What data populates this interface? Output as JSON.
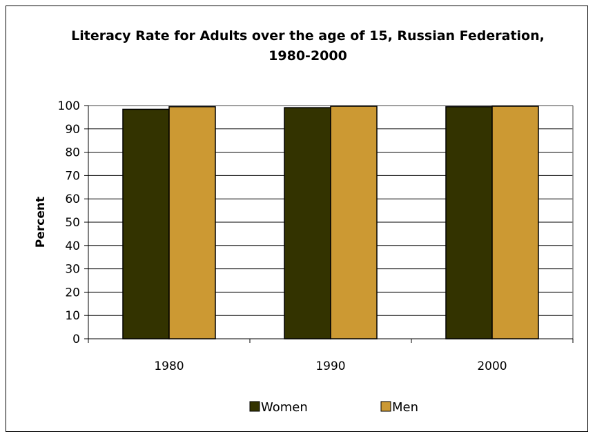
{
  "chart_data": {
    "type": "bar",
    "title_line1": "Literacy Rate for Adults over the age of 15, Russian Federation,",
    "title_line2": "1980-2000",
    "ylabel": "Percent",
    "xlabel": "",
    "ylim": [
      0,
      100
    ],
    "yticks": [
      "0",
      "10",
      "20",
      "30",
      "40",
      "50",
      "60",
      "70",
      "80",
      "90",
      "100"
    ],
    "categories": [
      "1980",
      "1990",
      "2000"
    ],
    "series": [
      {
        "name": "Women",
        "values": [
          98.4,
          99.1,
          99.5
        ],
        "color": "#333300"
      },
      {
        "name": "Men",
        "values": [
          99.5,
          99.7,
          99.7
        ],
        "color": "#CC9933"
      }
    ],
    "grid": true,
    "legend_position": "bottom"
  }
}
